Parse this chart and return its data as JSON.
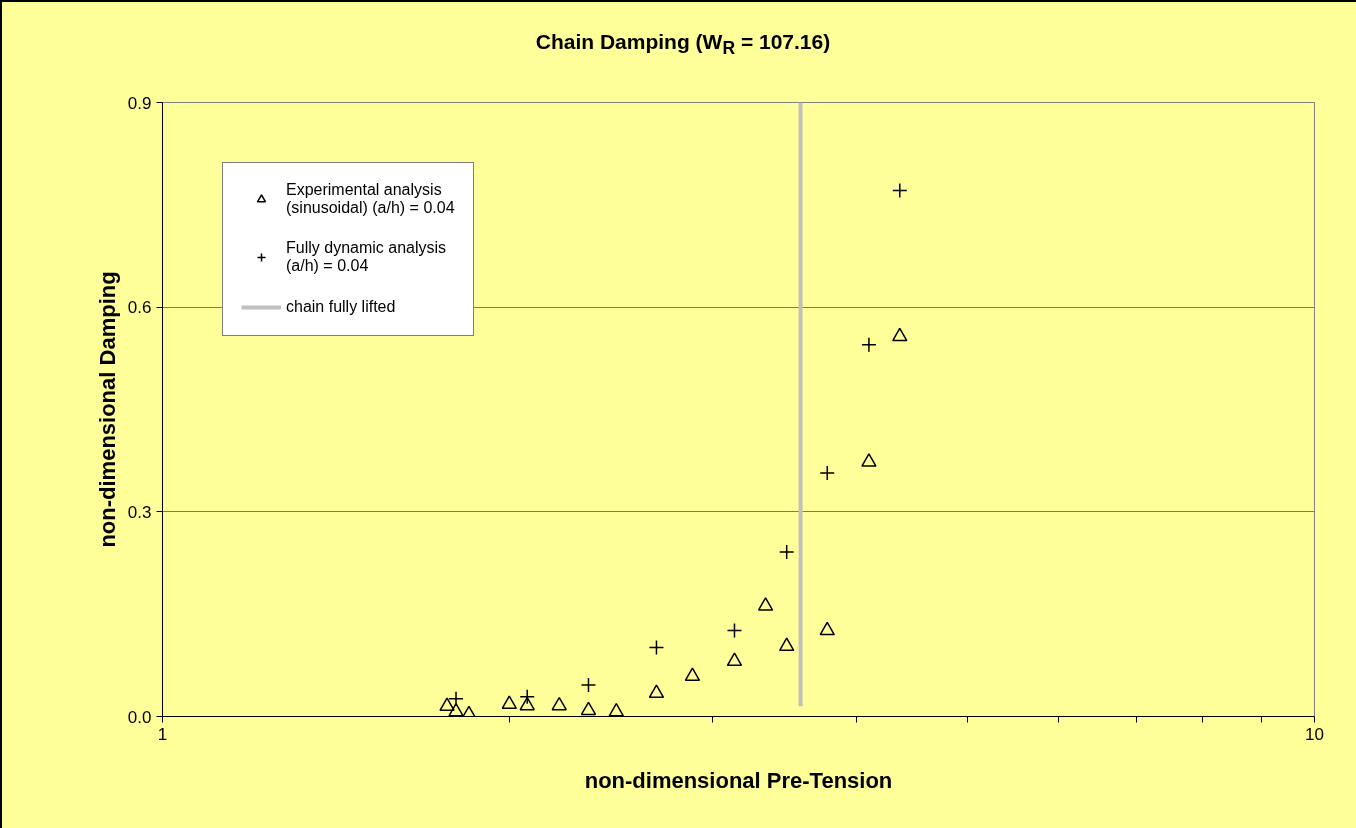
{
  "chart_data": {
    "type": "scatter",
    "title": "Chain Damping (W$_{R}$ = 107.16)",
    "xlabel": "non-dimensional Pre-Tension",
    "ylabel": "non-dimensional Damping",
    "log": "x",
    "xlim": [
      1,
      10
    ],
    "xticks": [
      1,
      {
        "value": 2,
        "label": null
      },
      {
        "value": 3,
        "label": null
      },
      {
        "value": 4,
        "label": null
      },
      {
        "value": 5,
        "label": null
      },
      {
        "value": 6,
        "label": null
      },
      {
        "value": 7,
        "label": null
      },
      {
        "value": 8,
        "label": null
      },
      {
        "value": 9,
        "label": null
      },
      10
    ],
    "ylim": [
      0,
      0.9
    ],
    "yticks": [
      {
        "value": 0,
        "label": "0.0"
      },
      0.3,
      0.6,
      0.9
    ],
    "grid": "y",
    "legend": "top left",
    "series": [
      {
        "name": "Experimental analysis (sinusoidal) (a/h) = 0.04",
        "color": "#000000",
        "marker": "triangle",
        "x": [
          1.766,
          1.798,
          1.845,
          2.0,
          2.073,
          2.21,
          2.343,
          2.477,
          2.684,
          2.884,
          3.137,
          3.338,
          3.482,
          3.776,
          4.104,
          4.365
        ],
        "values": [
          0.015,
          0.007,
          0.003,
          0.018,
          0.016,
          0.016,
          0.009,
          0.007,
          0.034,
          0.059,
          0.081,
          0.162,
          0.103,
          0.126,
          0.373,
          0.557
        ]
      },
      {
        "name": "Fully dynamic analysis (a/h) = 0.04",
        "color": "#000000",
        "marker": "cross",
        "x": [
          1.798,
          2.073,
          2.343,
          2.684,
          3.137,
          3.482,
          3.776,
          4.104,
          4.365
        ],
        "values": [
          0.026,
          0.029,
          0.046,
          0.101,
          0.126,
          0.241,
          0.357,
          0.545,
          0.771
        ]
      },
      {
        "name": "chain fully lifted",
        "type": "line",
        "color": "#c0c0c0",
        "x": [
          3.58,
          3.58
        ],
        "values": [
          0.015,
          0.9
        ]
      }
    ]
  }
}
